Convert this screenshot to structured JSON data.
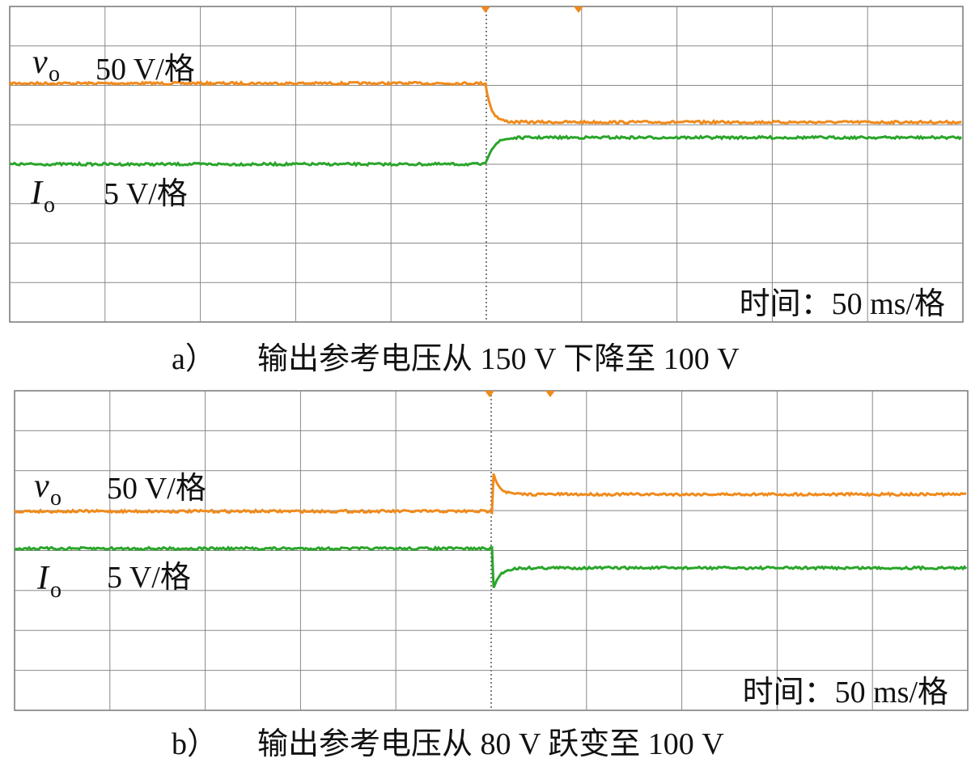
{
  "panels": [
    {
      "trace1": {
        "symbol": "v",
        "subscript": "o",
        "scale": "50 V/格"
      },
      "trace2": {
        "symbol": "I",
        "subscript": "o",
        "scale": "5 V/格"
      },
      "time": "时间：50 ms/格",
      "caption_label": "a）",
      "caption": "输出参考电压从 150 V 下降至 100 V"
    },
    {
      "trace1": {
        "symbol": "v",
        "subscript": "o",
        "scale": "50 V/格"
      },
      "trace2": {
        "symbol": "I",
        "subscript": "o",
        "scale": "5 V/格"
      },
      "time": "时间：50 ms/格",
      "caption_label": "b）",
      "caption": "输出参考电压从 80 V 跃变至 100 V"
    }
  ]
}
